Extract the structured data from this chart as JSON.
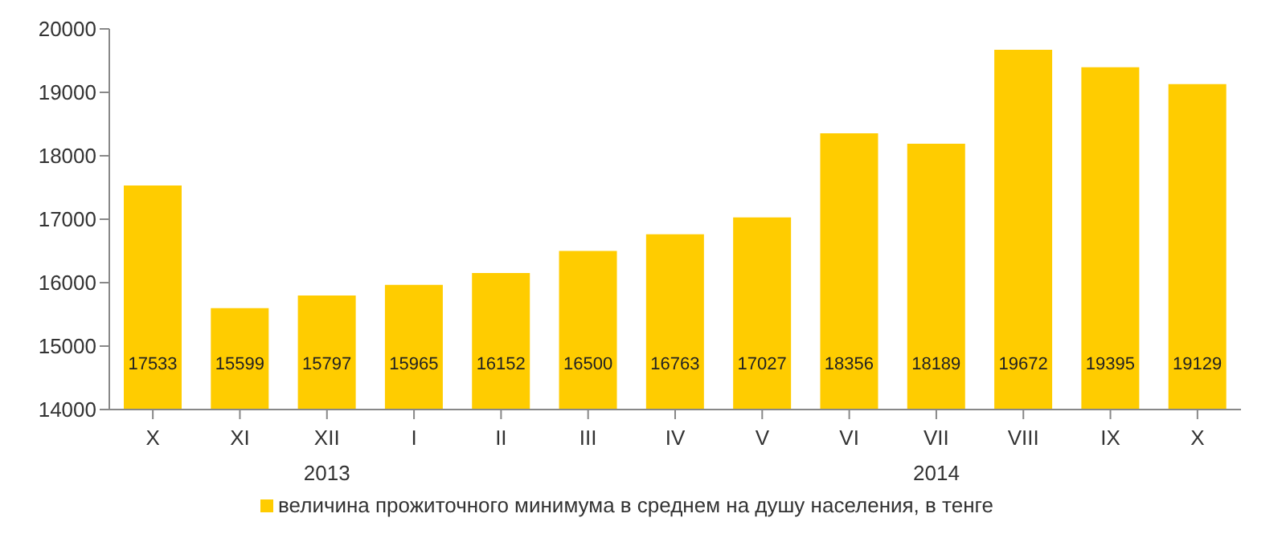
{
  "chart_data": {
    "type": "bar",
    "categories": [
      "X",
      "XI",
      "XII",
      "I",
      "II",
      "III",
      "IV",
      "V",
      "VI",
      "VII",
      "VIII",
      "IX",
      "X"
    ],
    "series": [
      {
        "name": "величина прожиточного минимума в среднем на душу населения, в тенге",
        "color": "#ffcc00",
        "values": [
          17533,
          15599,
          15797,
          15965,
          16152,
          16500,
          16763,
          17027,
          18356,
          18189,
          19672,
          19395,
          19129
        ]
      }
    ],
    "ylim": [
      14000,
      20000
    ],
    "yticks": [
      14000,
      15000,
      16000,
      17000,
      18000,
      19000,
      20000
    ],
    "annotations": [
      "2013",
      "2014"
    ],
    "data_labels": true,
    "grid": false,
    "legend": "bottom"
  }
}
